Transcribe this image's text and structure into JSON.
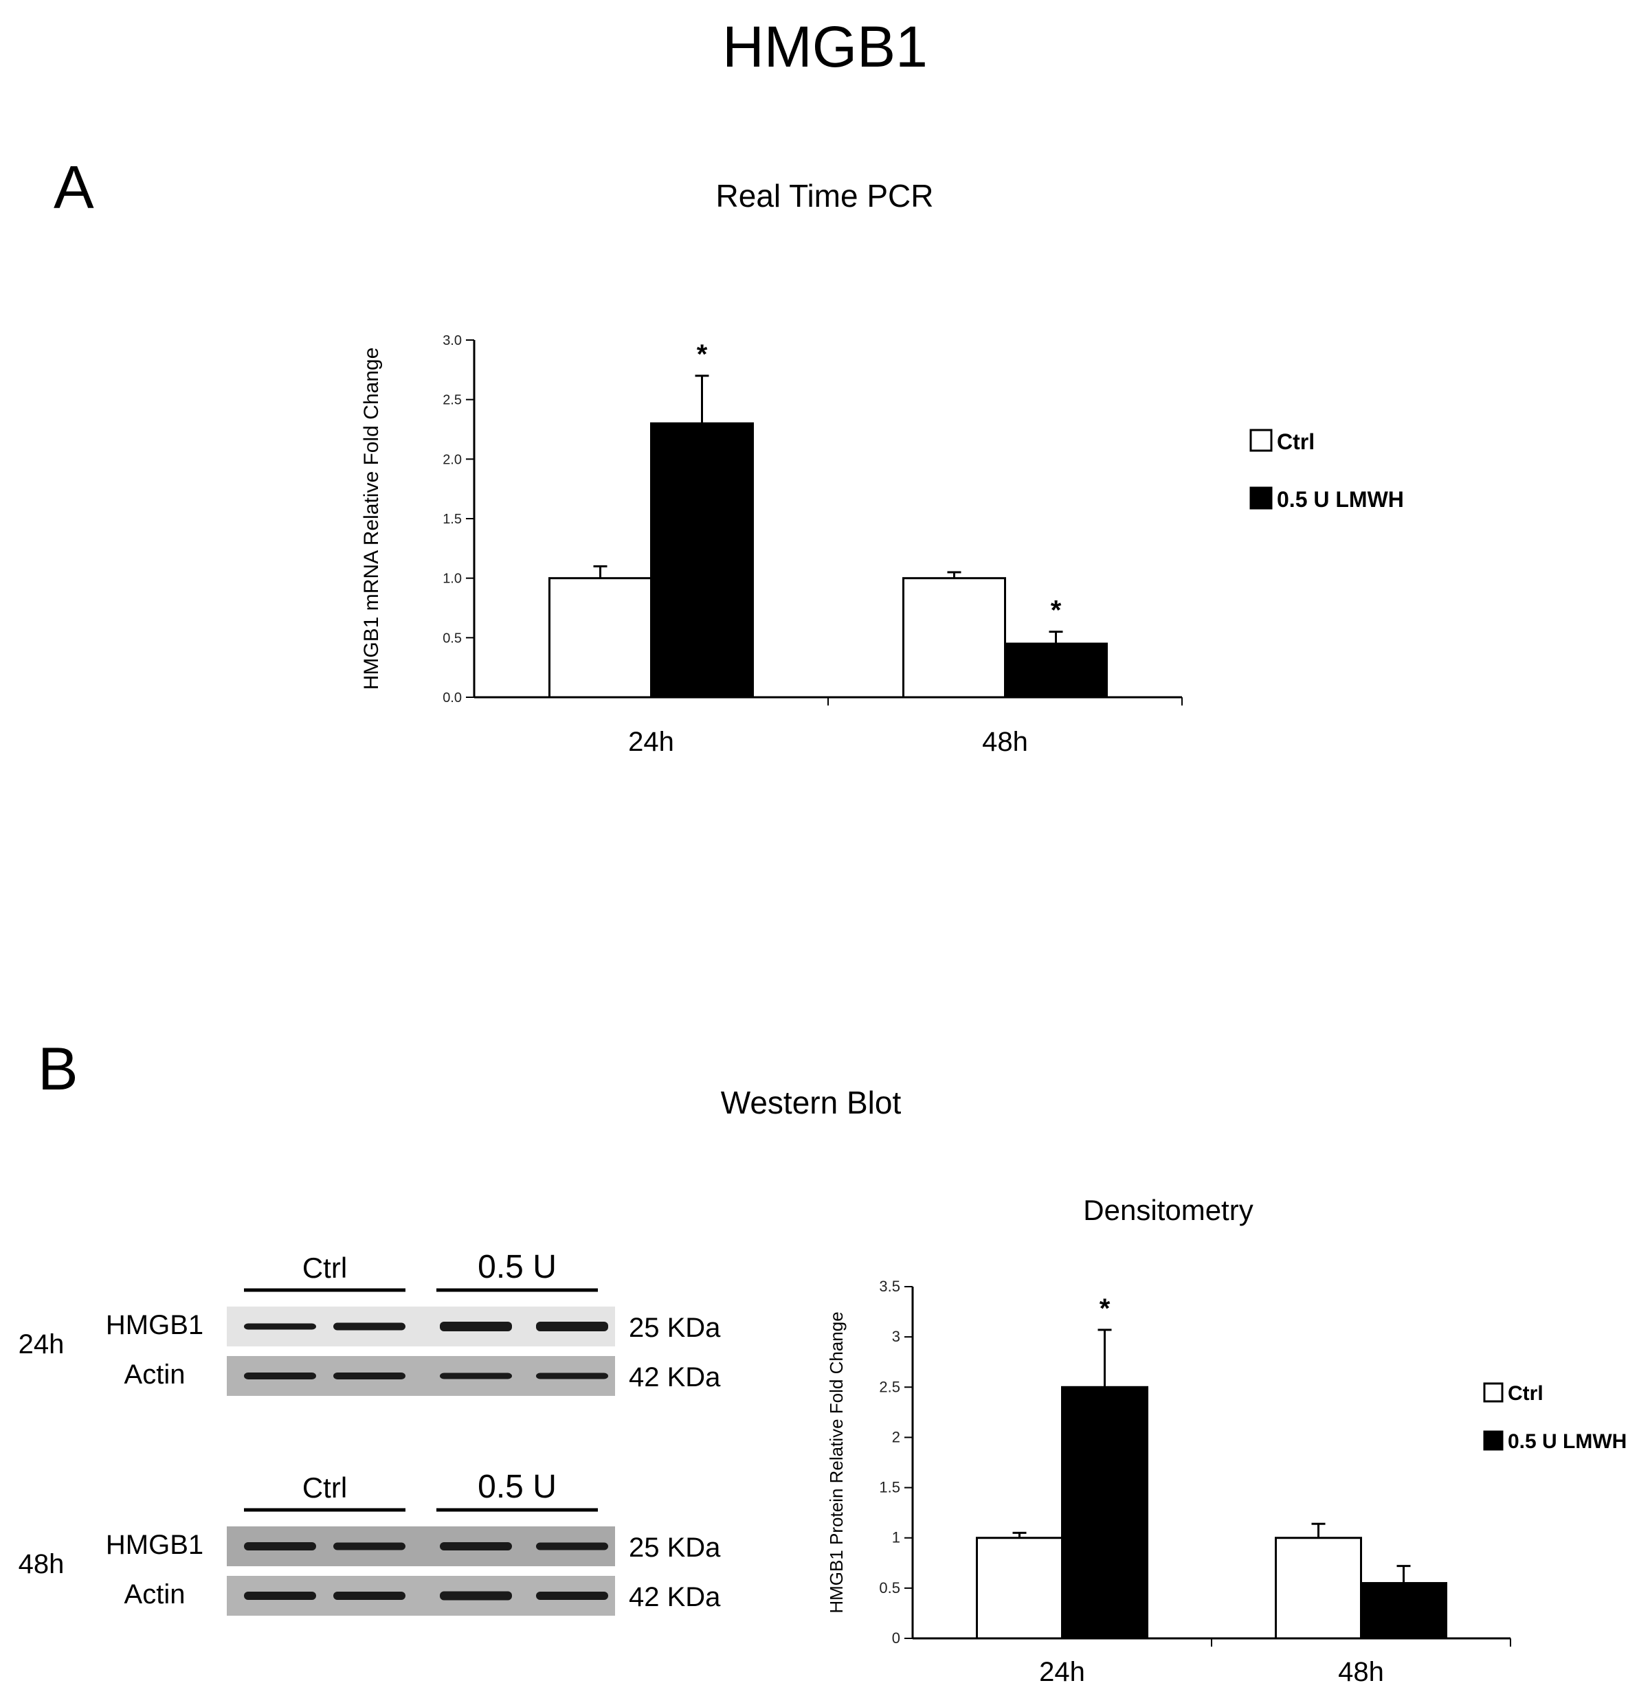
{
  "figure_title": "HMGB1",
  "panel_a": {
    "letter": "A",
    "title": "Real Time PCR"
  },
  "panel_b": {
    "letter": "B",
    "title": "Western Blot",
    "blots": [
      {
        "time": "24h",
        "group_labels": [
          "Ctrl",
          "0.5 U"
        ],
        "rows": [
          {
            "protein": "HMGB1",
            "size": "25 KDa"
          },
          {
            "protein": "Actin",
            "size": "42 KDa"
          }
        ]
      },
      {
        "time": "48h",
        "group_labels": [
          "Ctrl",
          "0.5 U"
        ],
        "rows": [
          {
            "protein": "HMGB1",
            "size": "25 KDa"
          },
          {
            "protein": "Actin",
            "size": "42 KDa"
          }
        ]
      }
    ]
  },
  "colors": {
    "ctrl": "#ffffff",
    "treated": "#000000",
    "blot_background": "#d6d6d6",
    "band": "#1a1a1a"
  },
  "chart_data": [
    {
      "type": "bar",
      "title": "Real Time PCR",
      "categories": [
        "24h",
        "48h"
      ],
      "ylabel": "HMGB1 mRNA Relative Fold Change",
      "xlabel": "",
      "ylim": [
        0,
        3.0
      ],
      "yticks": [
        "0.0",
        "0.5",
        "1.0",
        "1.5",
        "2.0",
        "2.5",
        "3.0"
      ],
      "legend_position": "right",
      "series": [
        {
          "name": "Ctrl",
          "values": [
            1.0,
            1.0
          ],
          "errors": [
            0.1,
            0.05
          ],
          "color": "#ffffff"
        },
        {
          "name": "0.5 U LMWH",
          "values": [
            2.3,
            0.45
          ],
          "errors": [
            0.4,
            0.1
          ],
          "color": "#000000"
        }
      ],
      "annotations": [
        {
          "text": "*",
          "category": "24h",
          "series": "0.5 U LMWH"
        },
        {
          "text": "*",
          "category": "48h",
          "series": "0.5 U LMWH"
        }
      ]
    },
    {
      "type": "bar",
      "title": "Densitometry",
      "categories": [
        "24h",
        "48h"
      ],
      "ylabel": "HMGB1 Protein Relative Fold Change",
      "xlabel": "",
      "ylim": [
        0,
        3.5
      ],
      "yticks": [
        "0",
        "0.5",
        "1",
        "1.5",
        "2",
        "2.5",
        "3",
        "3.5"
      ],
      "legend_position": "right",
      "series": [
        {
          "name": "Ctrl",
          "values": [
            1.0,
            1.0
          ],
          "errors": [
            0.05,
            0.14
          ],
          "color": "#ffffff"
        },
        {
          "name": "0.5 U LMWH",
          "values": [
            2.5,
            0.55
          ],
          "errors": [
            0.57,
            0.17
          ],
          "color": "#000000"
        }
      ],
      "annotations": [
        {
          "text": "*",
          "category": "24h",
          "series": "0.5 U LMWH"
        }
      ]
    }
  ]
}
